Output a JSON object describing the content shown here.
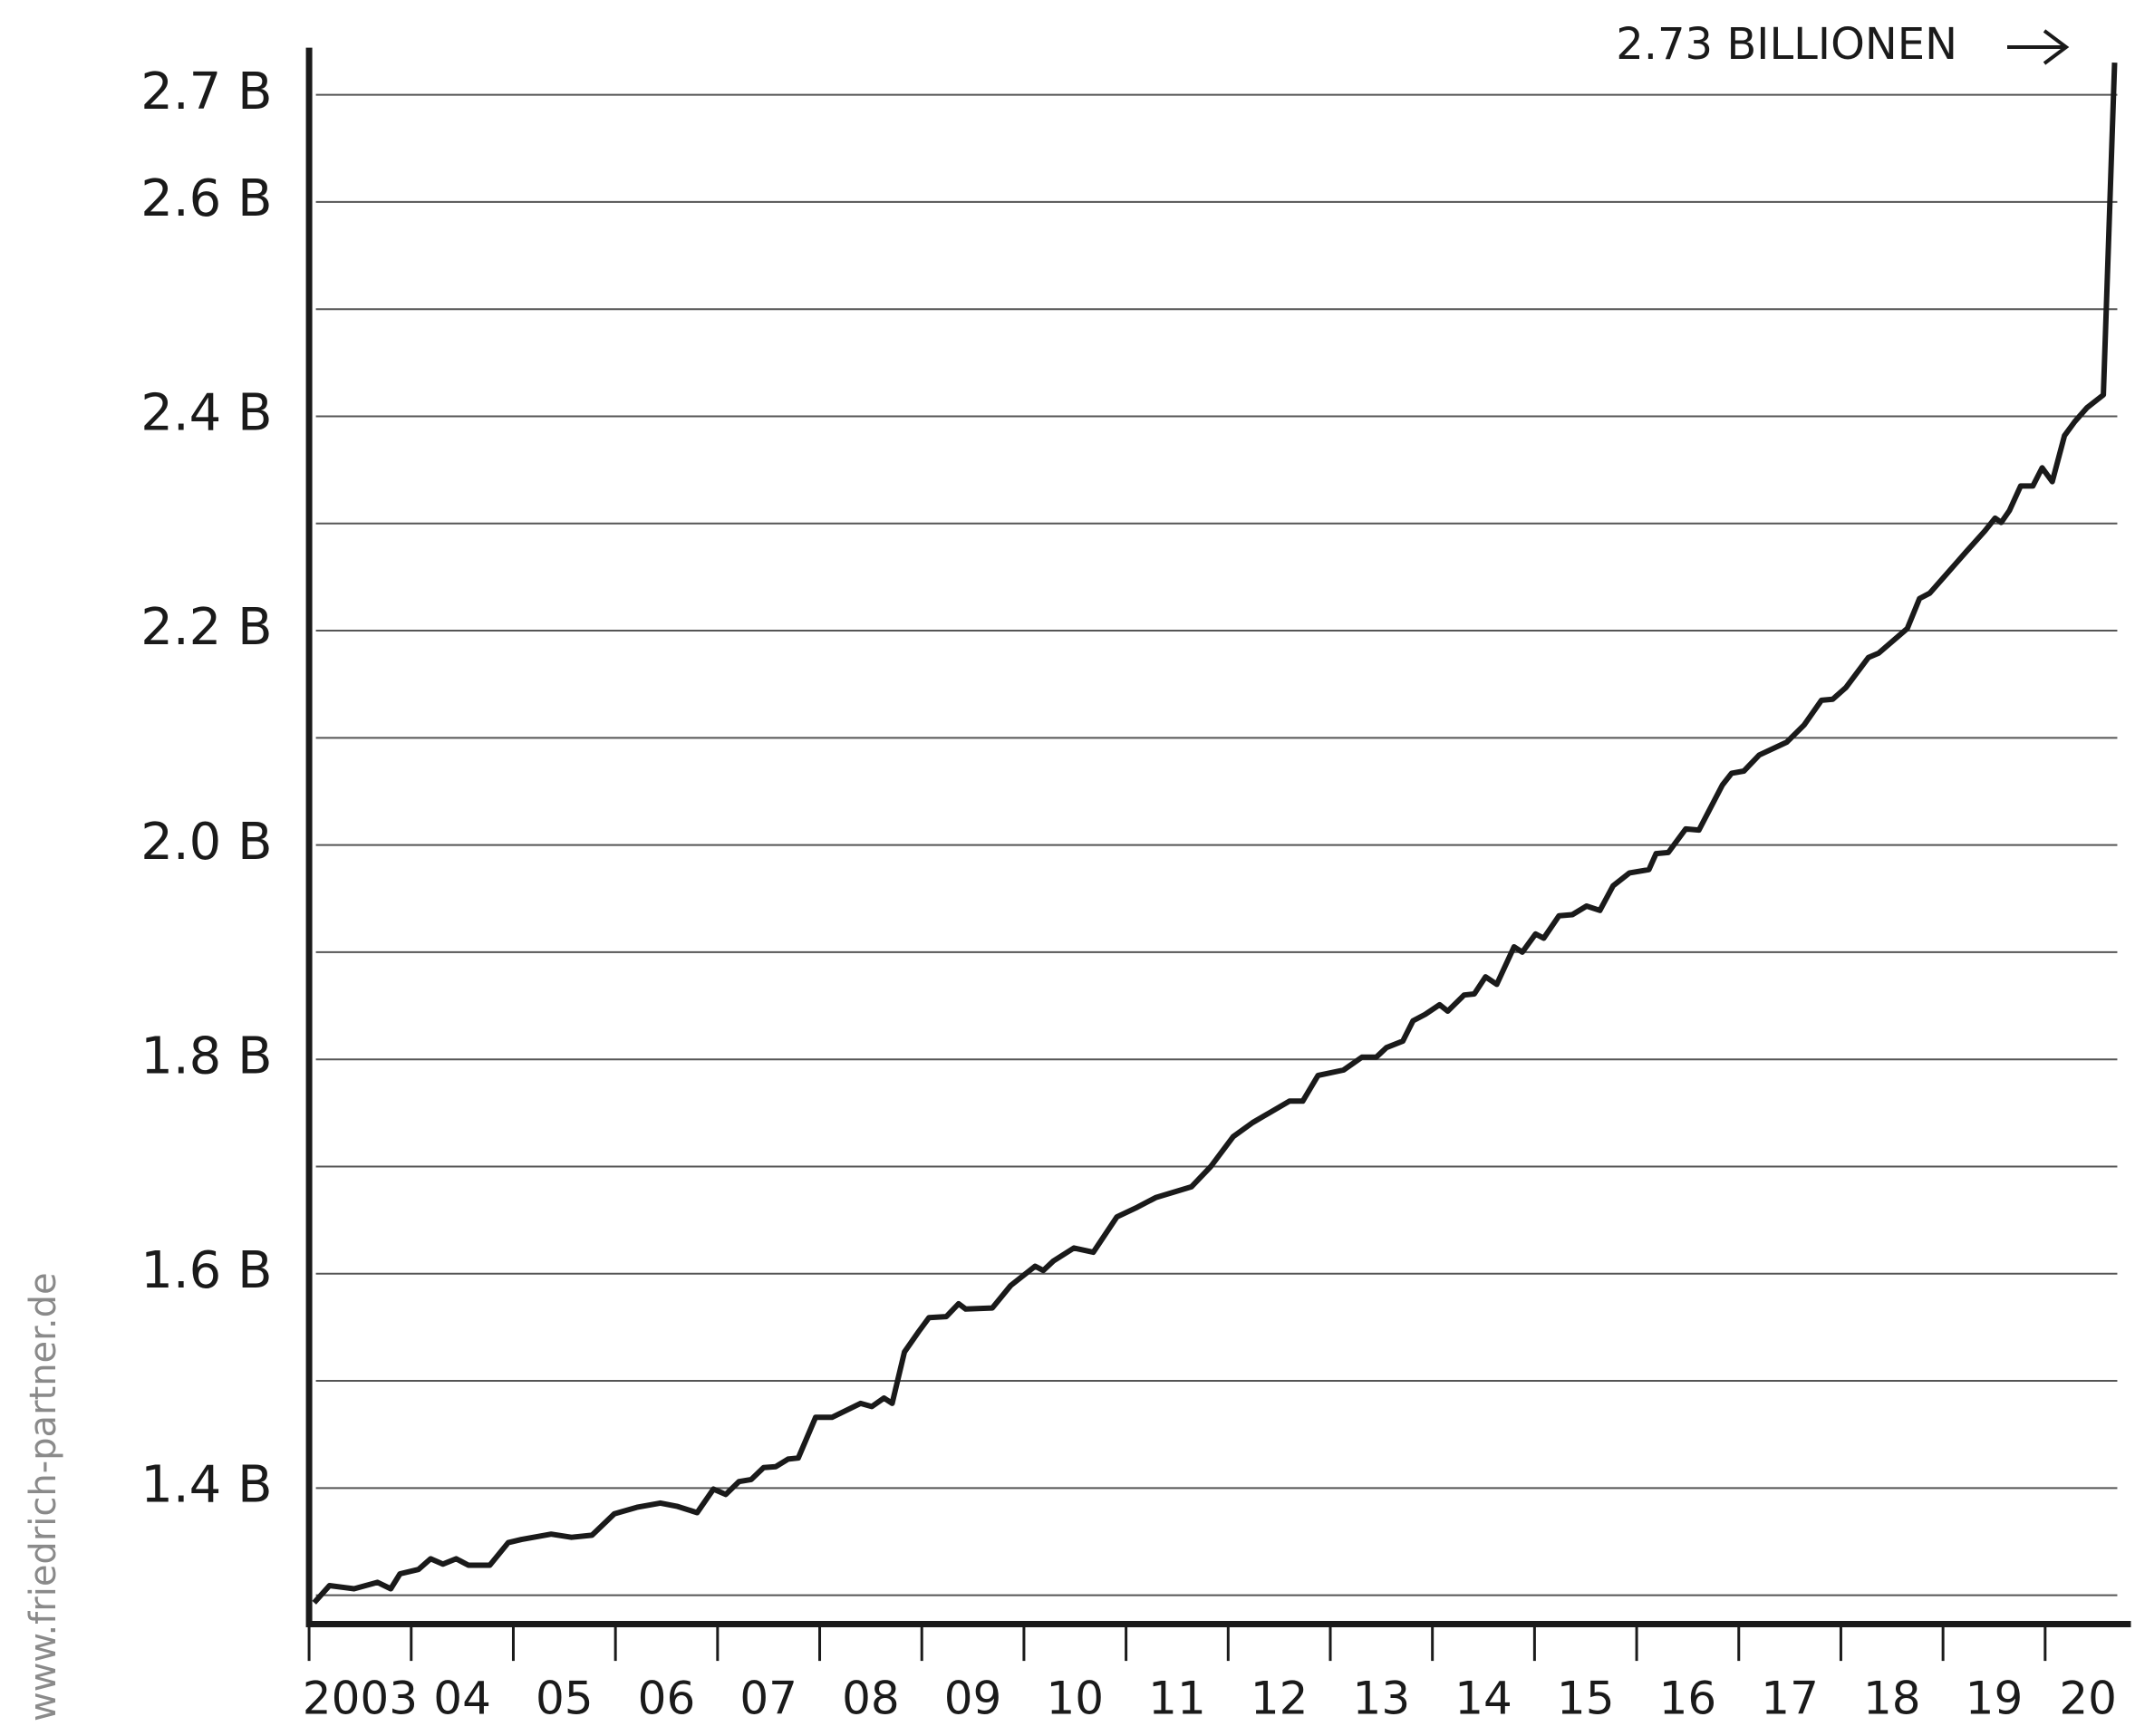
{
  "chart_data": {
    "type": "line",
    "annotation": "2.73 BILLIONEN",
    "watermark": "www.friedrich-partner.de",
    "xlim": [
      2003,
      2020.84
    ],
    "xticks": [
      2003,
      2004,
      2005,
      2006,
      2007,
      2008,
      2009,
      2010,
      2011,
      2012,
      2013,
      2014,
      2015,
      2016,
      2017,
      2018,
      2019,
      2020
    ],
    "year_labels": [
      "2003",
      "04",
      "05",
      "06",
      "07",
      "08",
      "09",
      "10",
      "11",
      "12",
      "13",
      "14",
      "15",
      "16",
      "17",
      "18",
      "19",
      "20"
    ],
    "ylim": [
      1.273,
      2.744
    ],
    "yticks": [
      {
        "value": 1.4,
        "label": "1.4 B"
      },
      {
        "value": 1.6,
        "label": "1.6 B"
      },
      {
        "value": 1.8,
        "label": "1.8 B"
      },
      {
        "value": 2.0,
        "label": "2.0 B"
      },
      {
        "value": 2.2,
        "label": "2.2 B"
      },
      {
        "value": 2.4,
        "label": "2.4 B"
      },
      {
        "value": 2.6,
        "label": "2.6 B"
      },
      {
        "value": 2.7,
        "label": "2.7 B"
      }
    ],
    "minor_yticks": [
      1.3,
      1.5,
      1.7,
      1.9,
      2.1,
      2.3,
      2.5
    ],
    "grid": true,
    "series": [
      {
        "color": "#1a1a1a",
        "x": [
          2003.05,
          2003.2,
          2003.44,
          2003.67,
          2003.8,
          2003.89,
          2004.07,
          2004.19,
          2004.31,
          2004.44,
          2004.56,
          2004.77,
          2004.95,
          2005.08,
          2005.37,
          2005.57,
          2005.77,
          2005.99,
          2006.21,
          2006.44,
          2006.6,
          2006.8,
          2006.96,
          2007.08,
          2007.21,
          2007.33,
          2007.45,
          2007.57,
          2007.69,
          2007.79,
          2007.96,
          2008.12,
          2008.4,
          2008.51,
          2008.63,
          2008.71,
          2008.83,
          2008.97,
          2009.07,
          2009.24,
          2009.36,
          2009.43,
          2009.69,
          2009.87,
          2010.11,
          2010.19,
          2010.29,
          2010.49,
          2010.68,
          2010.91,
          2011.11,
          2011.29,
          2011.64,
          2011.83,
          2012.05,
          2012.24,
          2012.6,
          2012.73,
          2012.88,
          2013.13,
          2013.31,
          2013.45,
          2013.55,
          2013.71,
          2013.81,
          2013.93,
          2014.07,
          2014.15,
          2014.31,
          2014.41,
          2014.52,
          2014.63,
          2014.8,
          2014.88,
          2015.01,
          2015.09,
          2015.24,
          2015.37,
          2015.51,
          2015.64,
          2015.77,
          2015.93,
          2016.12,
          2016.19,
          2016.31,
          2016.48,
          2016.61,
          2016.84,
          2016.93,
          2017.05,
          2017.2,
          2017.47,
          2017.64,
          2017.81,
          2017.92,
          2018.05,
          2018.27,
          2018.37,
          2018.65,
          2018.77,
          2018.87,
          2019.23,
          2019.41,
          2019.51,
          2019.57,
          2019.65,
          2019.76,
          2019.88,
          2019.97,
          2020.07,
          2020.19,
          2020.29,
          2020.41,
          2020.57,
          2020.68
        ],
        "values": [
          1.293,
          1.309,
          1.306,
          1.312,
          1.306,
          1.32,
          1.324,
          1.334,
          1.329,
          1.334,
          1.328,
          1.328,
          1.349,
          1.352,
          1.357,
          1.354,
          1.356,
          1.376,
          1.382,
          1.386,
          1.383,
          1.377,
          1.399,
          1.394,
          1.406,
          1.408,
          1.419,
          1.42,
          1.427,
          1.428,
          1.466,
          1.466,
          1.479,
          1.476,
          1.484,
          1.479,
          1.527,
          1.546,
          1.559,
          1.56,
          1.572,
          1.567,
          1.568,
          1.589,
          1.607,
          1.603,
          1.612,
          1.624,
          1.62,
          1.653,
          1.662,
          1.671,
          1.681,
          1.7,
          1.728,
          1.741,
          1.761,
          1.761,
          1.785,
          1.79,
          1.802,
          1.802,
          1.811,
          1.817,
          1.836,
          1.842,
          1.851,
          1.845,
          1.86,
          1.861,
          1.877,
          1.87,
          1.905,
          1.9,
          1.917,
          1.913,
          1.934,
          1.935,
          1.943,
          1.939,
          1.962,
          1.974,
          1.977,
          1.992,
          1.993,
          2.015,
          2.014,
          2.056,
          2.067,
          2.069,
          2.084,
          2.096,
          2.112,
          2.135,
          2.136,
          2.147,
          2.175,
          2.179,
          2.202,
          2.23,
          2.235,
          2.274,
          2.293,
          2.305,
          2.301,
          2.312,
          2.335,
          2.335,
          2.352,
          2.339,
          2.382,
          2.395,
          2.408,
          2.42,
          2.73
        ]
      }
    ]
  }
}
